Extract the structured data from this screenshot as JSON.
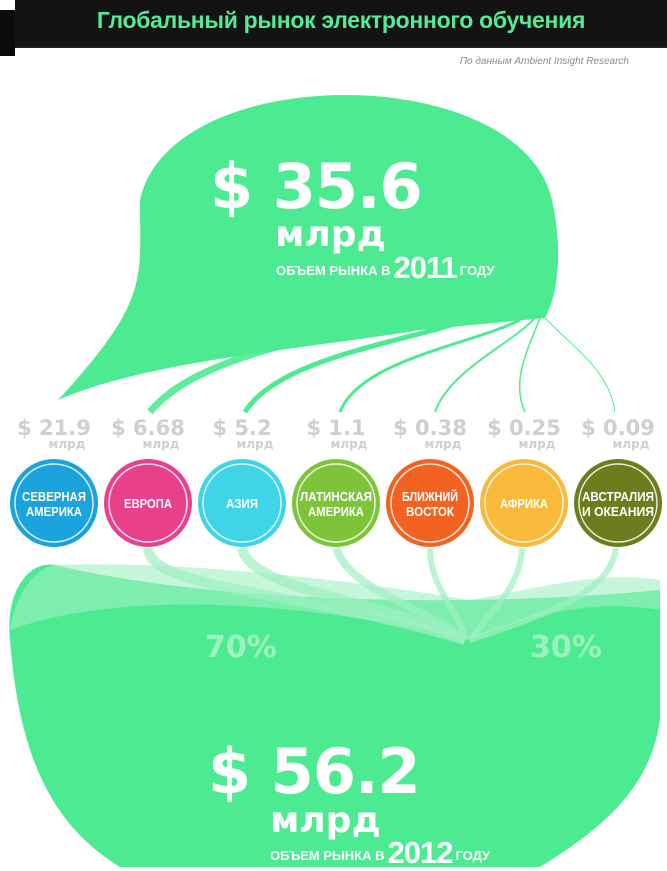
{
  "header": {
    "title": "Глобальный рынок электронного обучения",
    "source": "По данным Ambient Insight Research"
  },
  "top": {
    "value": "$ 35.6",
    "unit": "млрд",
    "label_before": "ОБЪЕМ РЫНКА В",
    "year": "2011",
    "label_after": "ГОДУ"
  },
  "bottom": {
    "value": "$ 56.2",
    "unit": "млрд",
    "label_before": "ОБЪЕМ РЫНКА В",
    "year": "2012",
    "label_after": "ГОДУ"
  },
  "percentages": {
    "left": "70%",
    "right": "30%"
  },
  "regions": [
    {
      "value_text": "$ 21.9",
      "unit": "млрд",
      "line1": "СЕВЕРНАЯ",
      "line2": "АМЕРИКА",
      "color": "#1aa3dc"
    },
    {
      "value_text": "$ 6.68",
      "unit": "млрд",
      "line1": "ЕВРОПА",
      "line2": "",
      "color": "#e8408b"
    },
    {
      "value_text": "$ 5.2",
      "unit": "млрд",
      "line1": "АЗИЯ",
      "line2": "",
      "color": "#3fd4e8"
    },
    {
      "value_text": "$ 1.1",
      "unit": "млрд",
      "line1": "ЛАТИНСКАЯ",
      "line2": "АМЕРИКА",
      "color": "#7ec43a"
    },
    {
      "value_text": "$ 0.38",
      "unit": "млрд",
      "line1": "БЛИЖНИЙ",
      "line2": "ВОСТОК",
      "color": "#f26322"
    },
    {
      "value_text": "$ 0.25",
      "unit": "млрд",
      "line1": "АФРИКА",
      "line2": "",
      "color": "#f9b93b"
    },
    {
      "value_text": "$ 0.09",
      "unit": "млрд",
      "line1": "АВСТРАЛИЯ",
      "line2": "И ОКЕАНИЯ",
      "color": "#6b7d1c"
    }
  ],
  "chart_data": {
    "type": "bar",
    "categories": [
      "СЕВЕРНАЯ АМЕРИКА",
      "ЕВРОПА",
      "АЗИЯ",
      "ЛАТИНСКАЯ АМЕРИКА",
      "БЛИЖНИЙ ВОСТОК",
      "АФРИКА",
      "АВСТРАЛИЯ И ОКЕАНИЯ"
    ],
    "values": [
      21.9,
      6.68,
      5.2,
      1.1,
      0.38,
      0.25,
      0.09
    ],
    "totals": {
      "2011": 35.6,
      "2012": 56.2
    },
    "shares_2012": {
      "left": 70,
      "right": 30
    },
    "title": "Глобальный рынок электронного обучения",
    "colors": {
      "main_green": "#4deb91",
      "light_green": "#9ff0c1"
    }
  }
}
